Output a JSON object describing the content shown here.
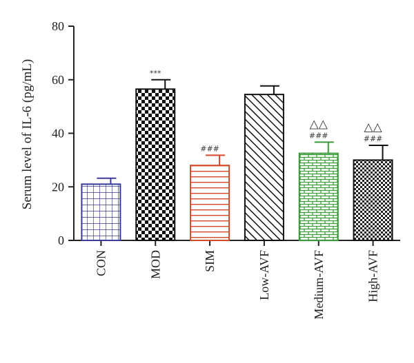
{
  "chart_data": {
    "type": "bar",
    "title": "",
    "xlabel": "",
    "ylabel": "Serum level of IL-6 (pg/mL)",
    "ylim": [
      0,
      80
    ],
    "yticks": [
      "0",
      "20",
      "40",
      "60",
      "80"
    ],
    "categories": [
      "CON",
      "MOD",
      "SIM",
      "Low-AVF",
      "Medium-AVF",
      "High-AVF"
    ],
    "values": [
      21,
      56.5,
      28,
      54.5,
      32.5,
      30
    ],
    "errors": [
      2.2,
      3.5,
      3.8,
      3.2,
      4.2,
      5.5
    ],
    "annotations": [
      "",
      "***",
      "###",
      "",
      "###",
      "###"
    ],
    "annotations_top": [
      "",
      "",
      "",
      "",
      "△△",
      "△△"
    ],
    "colors": [
      "#3a3a9a",
      "#111111",
      "#d24a2a",
      "#111111",
      "#3a9a3a",
      "#111111"
    ],
    "patterns": [
      "grid",
      "checker",
      "hstripes",
      "diagonal",
      "brick",
      "smallchecker"
    ]
  }
}
